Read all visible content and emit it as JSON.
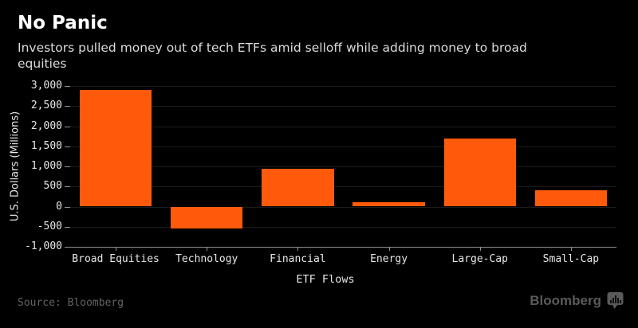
{
  "header": {
    "title": "No Panic",
    "subtitle": "Investors pulled money out of tech ETFs amid selloff while adding money to broad equities"
  },
  "chart_data": {
    "type": "bar",
    "categories": [
      "Broad Equities",
      "Technology",
      "Financial",
      "Energy",
      "Large-Cap",
      "Small-Cap"
    ],
    "values": [
      2900,
      -550,
      950,
      100,
      1700,
      400
    ],
    "title": "No Panic",
    "xlabel": "ETF Flows",
    "ylabel": "U.S. Dollars (Millions)",
    "ylim": [
      -1000,
      3000
    ],
    "ytick_step": 500,
    "ytick_labels": [
      "3,000",
      "2,500",
      "2,000",
      "1,500",
      "1,000",
      "500",
      "0",
      "-500",
      "-1,000"
    ],
    "grid": true,
    "legend": "none",
    "bar_color": "#ff5a0c",
    "bar_width_fraction": 0.79
  },
  "footer": {
    "source": "Source: Bloomberg",
    "brand": "Bloomberg"
  },
  "colors": {
    "background": "#000000",
    "title": "#ffffff",
    "subtitle": "#dcdcdc",
    "tick_text": "#e6e6e6",
    "gridline": "#1c1c1c",
    "axis": "#919199",
    "bar": "#ff5a0c",
    "source_text": "#646464",
    "brand_text": "#5a5a5a"
  }
}
